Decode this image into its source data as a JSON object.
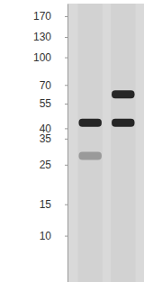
{
  "chart_data": {
    "type": "blot",
    "log": "y",
    "tick_labels": "y",
    "categories": [
      null,
      null
    ],
    "series": [
      {
        "color": "#262626",
        "values": [
          43,
          43
        ]
      },
      {
        "color": "#9a9a9a",
        "values": [
          28,
          null
        ]
      },
      {
        "color": "#262626",
        "values": [
          null,
          62
        ]
      }
    ],
    "ylim": [
      5.5,
      200
    ],
    "yticks": [
      170,
      130,
      100,
      70,
      55,
      40,
      35,
      25,
      15,
      10
    ]
  }
}
